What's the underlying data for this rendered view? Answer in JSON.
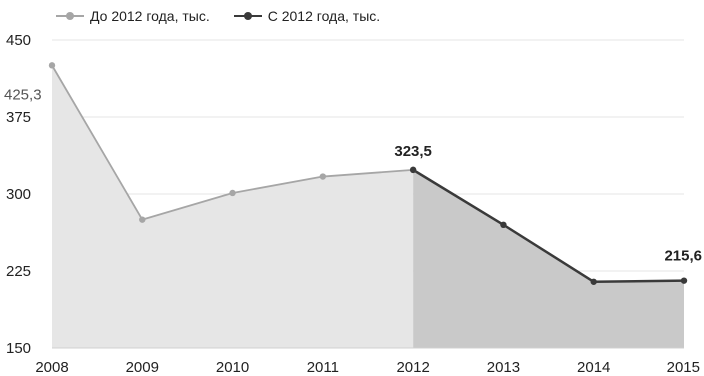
{
  "chart_data": {
    "type": "area",
    "x": [
      "2008",
      "2009",
      "2010",
      "2011",
      "2012",
      "2013",
      "2014",
      "2015"
    ],
    "series": [
      {
        "name": "До 2012 года, тыс.",
        "x": [
          "2008",
          "2009",
          "2010",
          "2011",
          "2012"
        ],
        "values": [
          425.3,
          275,
          301,
          317,
          323.5
        ],
        "color": "#a6a6a6",
        "fill": "#e6e6e6"
      },
      {
        "name": "С 2012 года, тыс.",
        "x": [
          "2012",
          "2013",
          "2014",
          "2015"
        ],
        "values": [
          323.5,
          270,
          214.5,
          215.6
        ],
        "color": "#3a3a3a",
        "fill": "#c9c9c9"
      }
    ],
    "yticks": [
      "150",
      "225",
      "300",
      "375",
      "450"
    ],
    "ylim": [
      150,
      450
    ],
    "grid": true,
    "legend": "top-left",
    "data_labels": [
      {
        "x": "2008",
        "text": "425,3"
      },
      {
        "x": "2012",
        "text": "323,5"
      },
      {
        "x": "2015",
        "text": "215,6"
      }
    ]
  }
}
